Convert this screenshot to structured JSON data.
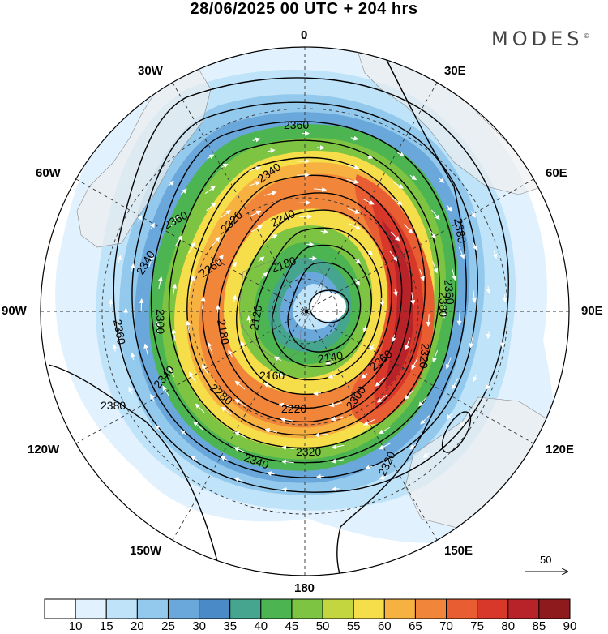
{
  "header": {
    "title": "28/06/2025  00 UTC  + 204 hrs",
    "logo": "MODES",
    "logo_mark": "©"
  },
  "map": {
    "projection": "polar stereographic (south pole)",
    "longitude_labels": {
      "top": "0",
      "bottom": "180",
      "left": "90W",
      "right": "90E",
      "upper_left_1": "30W",
      "upper_left_2": "60W",
      "upper_right_1": "30E",
      "upper_right_2": "60E",
      "lower_left_1": "120W",
      "lower_left_2": "150W",
      "lower_right_1": "120E",
      "lower_right_2": "150E"
    },
    "contour_labels": {
      "c1": "2360",
      "c2": "2340",
      "c3": "2360",
      "c4": "2320",
      "c5": "2240",
      "c6": "2260",
      "c7": "2180",
      "c8": "2300",
      "c9": "2340",
      "c10": "2180",
      "c11": "2120",
      "c12": "2360",
      "c13": "2380",
      "c14": "2160",
      "c15": "2140",
      "c16": "2220",
      "c17": "2280",
      "c18": "2300",
      "c19": "2320",
      "c20": "2340",
      "c21": "2380",
      "c22": "2360",
      "c23": "2320",
      "c24": "2320",
      "c25": "2380",
      "c26": "2260",
      "c27": "2340"
    },
    "contour_interval": 20,
    "reference_vector_label": "50"
  },
  "colorbar": {
    "labels": [
      "10",
      "15",
      "20",
      "25",
      "30",
      "35",
      "40",
      "45",
      "50",
      "55",
      "60",
      "65",
      "70",
      "75",
      "80",
      "85",
      "90"
    ],
    "colors": [
      "#ffffff",
      "#e1f1fd",
      "#bfe3f8",
      "#93c9ec",
      "#6aa8dc",
      "#4a8ac6",
      "#45a58e",
      "#4cb450",
      "#7cc442",
      "#c3d63f",
      "#f6de4b",
      "#f6b141",
      "#f1863a",
      "#e85d31",
      "#d7382a",
      "#b8232a",
      "#8e1a1e"
    ]
  }
}
